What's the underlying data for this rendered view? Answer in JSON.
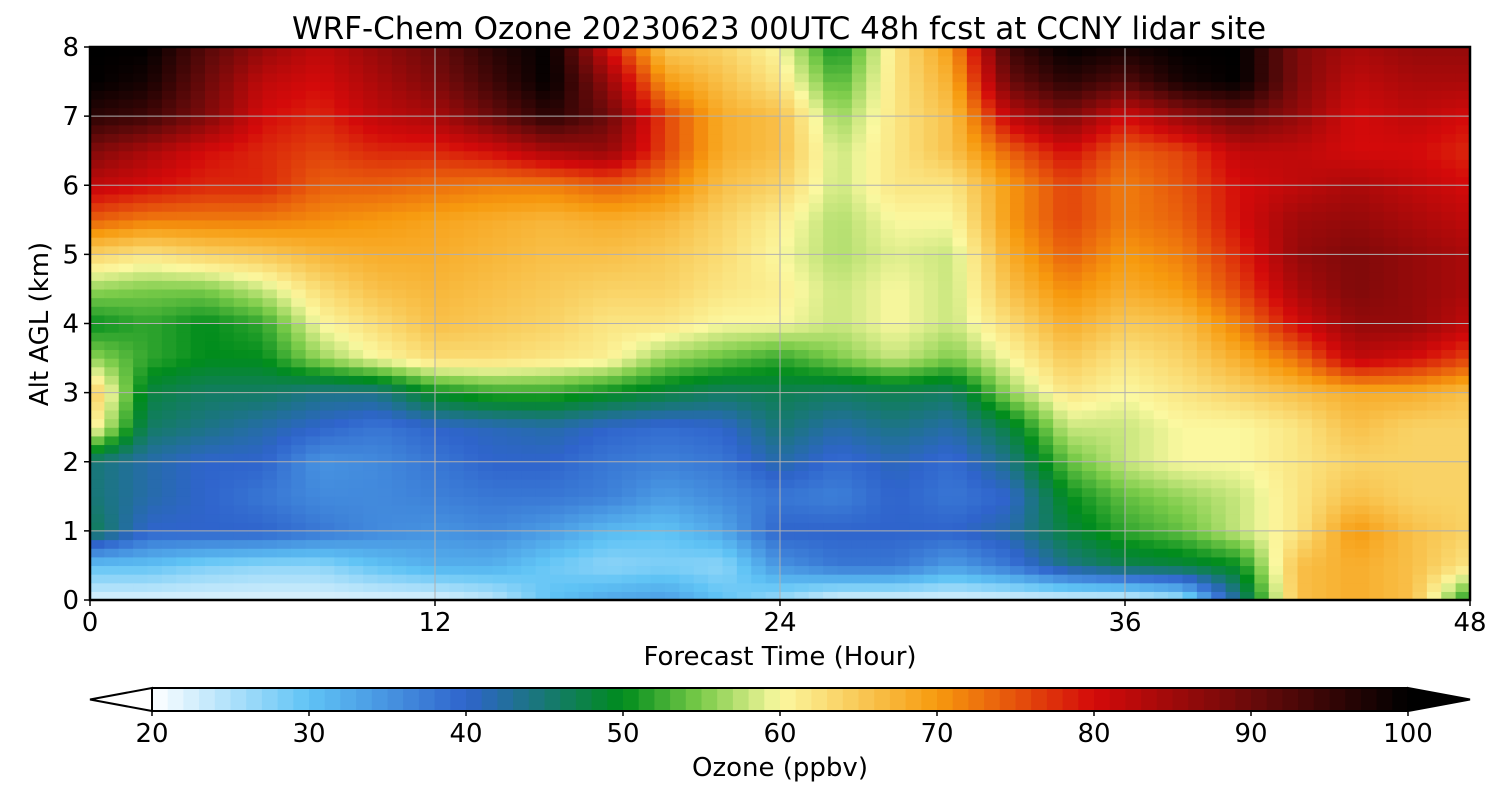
{
  "chart_data": {
    "type": "heatmap",
    "title": "WRF-Chem Ozone  20230623 00UTC 48h fcst at CCNY lidar site",
    "xlabel": "Forecast Time (Hour)",
    "ylabel": "Alt AGL (km)",
    "xlim": [
      0,
      48
    ],
    "ylim": [
      0,
      8
    ],
    "x_ticks": [
      0,
      12,
      24,
      36,
      48
    ],
    "y_ticks": [
      0,
      1,
      2,
      3,
      4,
      5,
      6,
      7,
      8
    ],
    "grid": true,
    "colorbar": {
      "label": "Ozone  (ppbv)",
      "min": 20,
      "max": 100,
      "ticks": [
        20,
        30,
        40,
        50,
        60,
        70,
        80,
        90,
        100
      ],
      "extend": "both",
      "stops": [
        {
          "value": 20,
          "color": "#ffffff"
        },
        {
          "value": 30,
          "color": "#5fc3f5"
        },
        {
          "value": 40,
          "color": "#2f64cc"
        },
        {
          "value": 50,
          "color": "#008c1c"
        },
        {
          "value": 55,
          "color": "#7ccc4a"
        },
        {
          "value": 60,
          "color": "#fbf8a0"
        },
        {
          "value": 70,
          "color": "#f79a0e"
        },
        {
          "value": 80,
          "color": "#d40a0a"
        },
        {
          "value": 90,
          "color": "#6a0a0a"
        },
        {
          "value": 100,
          "color": "#000000"
        }
      ]
    },
    "time_hours": [
      0,
      2,
      4,
      6,
      8,
      10,
      12,
      14,
      16,
      18,
      20,
      22,
      24,
      26,
      28,
      30,
      32,
      34,
      36,
      38,
      40,
      42,
      44,
      46,
      48
    ],
    "altitude_km": [
      0,
      0.5,
      1,
      1.5,
      2,
      2.5,
      3,
      3.5,
      4,
      4.5,
      5,
      5.5,
      6,
      6.5,
      7,
      7.5,
      8
    ],
    "ozone_ppbv": [
      [
        22,
        22,
        22,
        22,
        22,
        22,
        22,
        24,
        30,
        33,
        34,
        30,
        26,
        22,
        22,
        22,
        22,
        22,
        22,
        25,
        44,
        66,
        68,
        66,
        50
      ],
      [
        30,
        30,
        28,
        27,
        27,
        30,
        32,
        32,
        29,
        27,
        28,
        27,
        35,
        38,
        38,
        34,
        38,
        44,
        47,
        48,
        50,
        66,
        68,
        66,
        62
      ],
      [
        47,
        40,
        40,
        40,
        38,
        36,
        35,
        36,
        34,
        31,
        30,
        33,
        40,
        40,
        40,
        40,
        42,
        48,
        52,
        54,
        58,
        62,
        70,
        66,
        64
      ],
      [
        45,
        42,
        40,
        38,
        36,
        36,
        37,
        38,
        38,
        37,
        34,
        36,
        38,
        37,
        40,
        38,
        40,
        50,
        54,
        56,
        58,
        62,
        66,
        64,
        64
      ],
      [
        45,
        42,
        40,
        40,
        35,
        36,
        38,
        40,
        40,
        38,
        37,
        38,
        42,
        39,
        41,
        39,
        44,
        54,
        58,
        60,
        60,
        62,
        64,
        64,
        64
      ],
      [
        62,
        46,
        44,
        42,
        40,
        38,
        40,
        41,
        42,
        40,
        39,
        40,
        45,
        42,
        44,
        42,
        48,
        58,
        58,
        60,
        60,
        62,
        66,
        64,
        64
      ],
      [
        66,
        48,
        46,
        46,
        44,
        44,
        50,
        52,
        52,
        50,
        48,
        46,
        47,
        46,
        47,
        46,
        56,
        62,
        60,
        62,
        64,
        66,
        68,
        68,
        66
      ],
      [
        56,
        52,
        50,
        50,
        56,
        60,
        63,
        63,
        62,
        61,
        56,
        54,
        52,
        55,
        58,
        55,
        60,
        65,
        62,
        64,
        68,
        73,
        82,
        80,
        76
      ],
      [
        50,
        52,
        50,
        52,
        60,
        63,
        66,
        65,
        64,
        62,
        62,
        60,
        60,
        58,
        60,
        58,
        63,
        68,
        65,
        66,
        72,
        80,
        86,
        86,
        82
      ],
      [
        56,
        55,
        55,
        58,
        63,
        66,
        67,
        66,
        65,
        64,
        64,
        62,
        61,
        58,
        60,
        58,
        66,
        71,
        68,
        70,
        76,
        84,
        88,
        86,
        84
      ],
      [
        64,
        62,
        64,
        65,
        67,
        68,
        68,
        67,
        66,
        66,
        65,
        63,
        60,
        57,
        59,
        58,
        68,
        74,
        70,
        72,
        78,
        86,
        88,
        86,
        84
      ],
      [
        74,
        72,
        72,
        72,
        71,
        70,
        69,
        68,
        67,
        68,
        67,
        64,
        61,
        57,
        60,
        60,
        70,
        76,
        72,
        74,
        80,
        85,
        86,
        84,
        82
      ],
      [
        82,
        80,
        78,
        78,
        74,
        74,
        73,
        72,
        72,
        74,
        72,
        66,
        64,
        58,
        62,
        62,
        70,
        76,
        72,
        75,
        80,
        82,
        84,
        82,
        80
      ],
      [
        88,
        84,
        80,
        78,
        76,
        78,
        78,
        80,
        84,
        86,
        76,
        68,
        66,
        58,
        62,
        66,
        74,
        80,
        74,
        76,
        82,
        82,
        80,
        80,
        78
      ],
      [
        96,
        94,
        88,
        80,
        78,
        82,
        84,
        90,
        96,
        90,
        76,
        68,
        66,
        56,
        62,
        66,
        82,
        88,
        80,
        86,
        90,
        86,
        80,
        82,
        80
      ],
      [
        100,
        98,
        90,
        82,
        80,
        84,
        88,
        94,
        100,
        86,
        70,
        66,
        62,
        53,
        62,
        68,
        90,
        96,
        92,
        98,
        100,
        88,
        82,
        84,
        84
      ],
      [
        100,
        100,
        92,
        86,
        82,
        86,
        90,
        96,
        100,
        80,
        65,
        64,
        60,
        50,
        62,
        70,
        94,
        100,
        98,
        100,
        100,
        88,
        84,
        86,
        86
      ]
    ]
  }
}
